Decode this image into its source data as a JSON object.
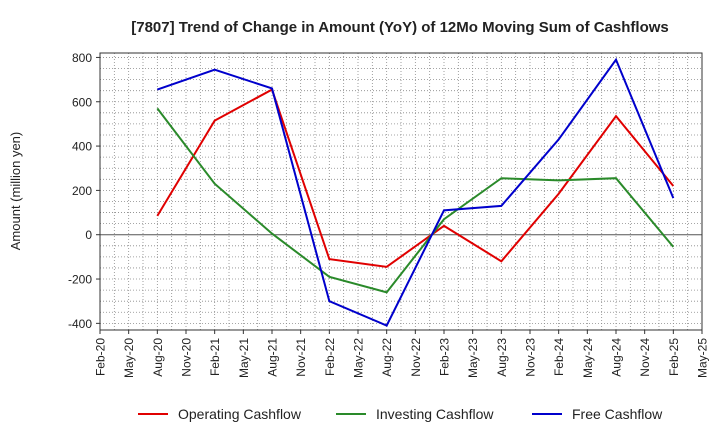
{
  "chart_data": {
    "type": "line",
    "title": "[7807]  Trend of Change in Amount (YoY) of 12Mo Moving Sum of Cashflows",
    "xlabel": "",
    "ylabel": "Amount (million yen)",
    "ylim": [
      -430,
      820
    ],
    "yticks": [
      -400,
      -200,
      0,
      200,
      400,
      600,
      800
    ],
    "ytick_labels": [
      "-400",
      "-200",
      "0",
      "200",
      "400",
      "600",
      "800"
    ],
    "categories": [
      "Feb-20",
      "May-20",
      "Aug-20",
      "Nov-20",
      "Feb-21",
      "May-21",
      "Aug-21",
      "Nov-21",
      "Feb-22",
      "May-22",
      "Aug-22",
      "Nov-22",
      "Feb-23",
      "May-23",
      "Aug-23",
      "Nov-23",
      "Feb-24",
      "May-24",
      "Aug-24",
      "Nov-24",
      "Feb-25",
      "May-25"
    ],
    "grid": true,
    "legend_position": "bottom",
    "series": [
      {
        "name": "Operating Cashflow",
        "color": "#e00000",
        "values": [
          null,
          null,
          85,
          null,
          515,
          null,
          655,
          null,
          -110,
          null,
          -145,
          null,
          40,
          null,
          -120,
          null,
          185,
          null,
          535,
          null,
          220,
          null
        ]
      },
      {
        "name": "Investing Cashflow",
        "color": "#2a8a2a",
        "values": [
          null,
          null,
          570,
          null,
          230,
          null,
          5,
          null,
          -190,
          null,
          -260,
          null,
          70,
          null,
          255,
          null,
          245,
          null,
          255,
          null,
          -55,
          null
        ]
      },
      {
        "name": "Free Cashflow",
        "color": "#0000cc",
        "values": [
          null,
          null,
          655,
          null,
          745,
          null,
          660,
          null,
          -300,
          null,
          -410,
          null,
          110,
          null,
          130,
          null,
          430,
          null,
          790,
          null,
          165,
          null
        ]
      }
    ]
  }
}
